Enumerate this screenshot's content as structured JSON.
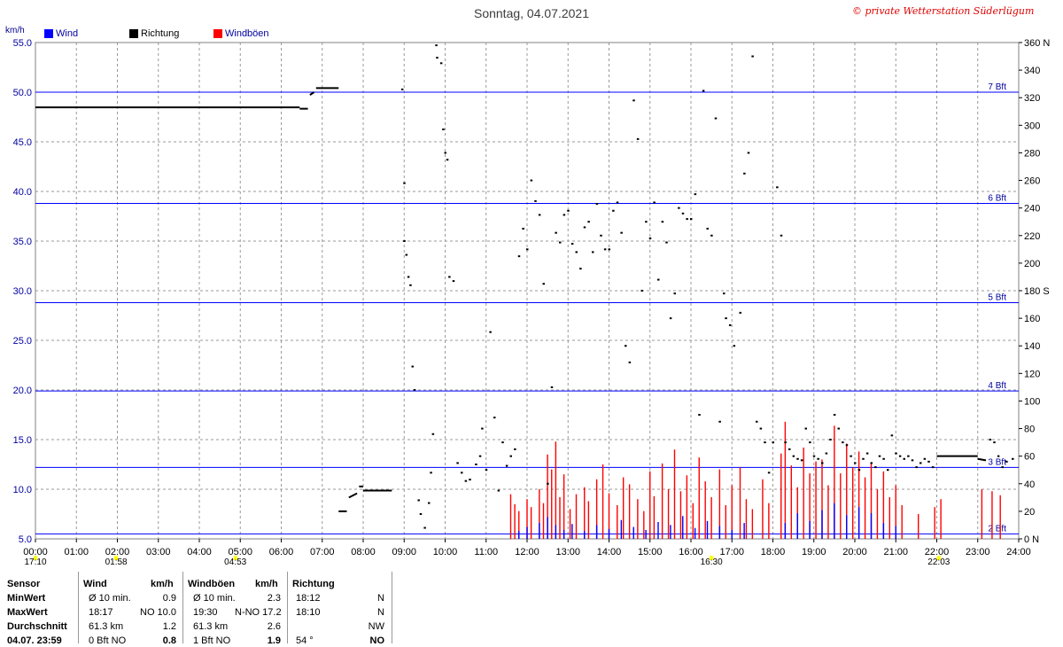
{
  "title": "Sonntag, 04.07.2021",
  "copyright": "© private Wetterstation Süderlügum",
  "left_unit": "km/h",
  "legend": [
    {
      "label": "Wind",
      "color": "#0000ff"
    },
    {
      "label": "Richtung",
      "color": "#000000"
    },
    {
      "label": "Windböen",
      "color": "#ff0000"
    }
  ],
  "colors": {
    "wind": "#0000ff",
    "gust": "#ff0000",
    "direction": "#000000",
    "bft_line": "#0000ff",
    "grid": "#999999",
    "marker": "#ffff00"
  },
  "chart_data": {
    "type": "bar",
    "x_ticks": [
      "00:00",
      "01:00",
      "02:00",
      "03:00",
      "04:00",
      "05:00",
      "06:00",
      "07:00",
      "08:00",
      "09:00",
      "10:00",
      "11:00",
      "12:00",
      "13:00",
      "14:00",
      "15:00",
      "16:00",
      "17:00",
      "18:00",
      "19:00",
      "20:00",
      "21:00",
      "22:00",
      "23:00",
      "24:00"
    ],
    "y_left_ticks": [
      "5.0",
      "10.0",
      "15.0",
      "20.0",
      "25.0",
      "30.0",
      "35.0",
      "40.0",
      "45.0",
      "50.0",
      "55.0"
    ],
    "y_left_range": [
      5,
      55
    ],
    "y_right_ticks": [
      "0 N",
      "20",
      "40",
      "60",
      "80",
      "100",
      "120",
      "140",
      "160",
      "180 S",
      "200",
      "220",
      "240",
      "260",
      "280",
      "300",
      "320",
      "340",
      "360 N"
    ],
    "y_right_range": [
      0,
      360
    ],
    "beaufort_lines": [
      {
        "label": "2 Bft",
        "kmh": 5.5
      },
      {
        "label": "3 Bft",
        "kmh": 12.2
      },
      {
        "label": "4 Bft",
        "kmh": 19.9
      },
      {
        "label": "5 Bft",
        "kmh": 28.8
      },
      {
        "label": "6 Bft",
        "kmh": 38.8
      },
      {
        "label": "7 Bft",
        "kmh": 50.0
      }
    ],
    "sun_markers": [
      {
        "label": "04:53",
        "time_h": 4.88
      },
      {
        "label": "22:03",
        "time_h": 22.05
      }
    ],
    "moon_markers": [
      {
        "label": "17:10",
        "time_h": 0.0
      },
      {
        "label": "01:58",
        "time_h": 1.97
      }
    ],
    "other_markers": [
      {
        "label": "16:30",
        "time_h": 16.5
      }
    ],
    "series": [
      {
        "name": "Windböen",
        "unit": "km/h",
        "points": [
          [
            11.6,
            9.5
          ],
          [
            11.7,
            8.5
          ],
          [
            11.8,
            7.8
          ],
          [
            12.0,
            9.0
          ],
          [
            12.1,
            8.2
          ],
          [
            12.3,
            10.0
          ],
          [
            12.4,
            8.6
          ],
          [
            12.5,
            13.5
          ],
          [
            12.6,
            12.0
          ],
          [
            12.7,
            14.8
          ],
          [
            12.8,
            9.2
          ],
          [
            12.9,
            11.5
          ],
          [
            13.05,
            8.0
          ],
          [
            13.2,
            9.5
          ],
          [
            13.4,
            10.2
          ],
          [
            13.5,
            8.8
          ],
          [
            13.7,
            11.0
          ],
          [
            13.85,
            12.5
          ],
          [
            14.0,
            9.6
          ],
          [
            14.2,
            8.4
          ],
          [
            14.35,
            11.2
          ],
          [
            14.5,
            10.5
          ],
          [
            14.7,
            9.0
          ],
          [
            14.85,
            7.8
          ],
          [
            15.0,
            11.8
          ],
          [
            15.1,
            9.3
          ],
          [
            15.3,
            12.6
          ],
          [
            15.45,
            10.0
          ],
          [
            15.6,
            14.0
          ],
          [
            15.75,
            9.8
          ],
          [
            15.9,
            11.4
          ],
          [
            16.05,
            8.6
          ],
          [
            16.2,
            13.2
          ],
          [
            16.35,
            10.8
          ],
          [
            16.5,
            9.2
          ],
          [
            16.7,
            12.0
          ],
          [
            16.85,
            8.4
          ],
          [
            17.0,
            10.4
          ],
          [
            17.2,
            12.2
          ],
          [
            17.35,
            9.0
          ],
          [
            17.5,
            8.0
          ],
          [
            17.75,
            11.0
          ],
          [
            17.9,
            8.6
          ],
          [
            18.2,
            13.6
          ],
          [
            18.3,
            16.8
          ],
          [
            18.45,
            12.4
          ],
          [
            18.6,
            10.2
          ],
          [
            18.75,
            14.2
          ],
          [
            18.9,
            11.6
          ],
          [
            19.05,
            12.8
          ],
          [
            19.2,
            13.0
          ],
          [
            19.35,
            10.4
          ],
          [
            19.5,
            16.4
          ],
          [
            19.65,
            11.6
          ],
          [
            19.8,
            14.6
          ],
          [
            19.95,
            12.2
          ],
          [
            20.1,
            13.8
          ],
          [
            20.25,
            11.2
          ],
          [
            20.4,
            12.6
          ],
          [
            20.55,
            10.0
          ],
          [
            20.7,
            11.8
          ],
          [
            20.85,
            9.2
          ],
          [
            21.0,
            10.4
          ],
          [
            21.15,
            8.4
          ],
          [
            21.55,
            7.5
          ],
          [
            21.95,
            8.2
          ],
          [
            22.1,
            9.0
          ],
          [
            23.1,
            10.0
          ],
          [
            23.35,
            9.8
          ],
          [
            23.55,
            9.4
          ]
        ]
      },
      {
        "name": "Wind",
        "unit": "km/h",
        "points": [
          [
            11.8,
            5.8
          ],
          [
            12.0,
            6.2
          ],
          [
            12.3,
            6.6
          ],
          [
            12.5,
            7.2
          ],
          [
            12.7,
            6.4
          ],
          [
            12.9,
            5.9
          ],
          [
            13.1,
            6.5
          ],
          [
            13.4,
            5.8
          ],
          [
            13.7,
            6.4
          ],
          [
            14.0,
            6.0
          ],
          [
            14.3,
            6.9
          ],
          [
            14.6,
            6.2
          ],
          [
            14.9,
            5.9
          ],
          [
            15.2,
            6.7
          ],
          [
            15.5,
            6.4
          ],
          [
            15.8,
            7.3
          ],
          [
            16.1,
            6.1
          ],
          [
            16.4,
            6.8
          ],
          [
            16.7,
            6.3
          ],
          [
            17.0,
            5.9
          ],
          [
            17.3,
            6.6
          ],
          [
            18.3,
            6.6
          ],
          [
            18.6,
            7.6
          ],
          [
            18.9,
            6.8
          ],
          [
            19.2,
            7.9
          ],
          [
            19.5,
            8.6
          ],
          [
            19.8,
            7.4
          ],
          [
            20.1,
            8.2
          ],
          [
            20.4,
            7.6
          ],
          [
            20.7,
            6.6
          ],
          [
            21.0,
            6.3
          ]
        ]
      },
      {
        "name": "Richtung",
        "unit": "deg",
        "segments": [
          [
            [
              0.0,
              313
            ],
            [
              6.45,
              313
            ]
          ],
          [
            [
              6.45,
              312
            ],
            [
              6.65,
              312
            ]
          ],
          [
            [
              6.7,
              322
            ],
            [
              6.8,
              324
            ]
          ],
          [
            [
              6.85,
              327
            ],
            [
              7.4,
              327
            ]
          ],
          [
            [
              7.4,
              20
            ],
            [
              7.6,
              20
            ]
          ],
          [
            [
              7.65,
              30
            ],
            [
              7.85,
              33
            ]
          ],
          [
            [
              7.9,
              38
            ],
            [
              8.0,
              38
            ]
          ],
          [
            [
              8.0,
              35
            ],
            [
              8.7,
              35
            ]
          ],
          [
            [
              22.0,
              60
            ],
            [
              23.0,
              60
            ]
          ],
          [
            [
              23.0,
              58
            ],
            [
              23.2,
              57
            ]
          ]
        ],
        "points": [
          [
            8.95,
            326
          ],
          [
            9.0,
            258
          ],
          [
            9.0,
            216
          ],
          [
            9.05,
            206
          ],
          [
            9.1,
            190
          ],
          [
            9.15,
            184
          ],
          [
            9.2,
            125
          ],
          [
            9.25,
            108
          ],
          [
            9.35,
            28
          ],
          [
            9.4,
            18
          ],
          [
            9.5,
            8
          ],
          [
            9.6,
            26
          ],
          [
            9.65,
            48
          ],
          [
            9.7,
            76
          ],
          [
            9.78,
            358
          ],
          [
            9.8,
            349
          ],
          [
            9.9,
            345
          ],
          [
            9.95,
            297
          ],
          [
            10.0,
            280
          ],
          [
            10.05,
            275
          ],
          [
            10.1,
            190
          ],
          [
            10.2,
            187
          ],
          [
            10.3,
            55
          ],
          [
            10.4,
            48
          ],
          [
            10.5,
            42
          ],
          [
            10.6,
            43
          ],
          [
            10.75,
            54
          ],
          [
            10.85,
            60
          ],
          [
            10.9,
            80
          ],
          [
            11.0,
            50
          ],
          [
            11.1,
            150
          ],
          [
            11.2,
            88
          ],
          [
            11.3,
            35
          ],
          [
            11.4,
            70
          ],
          [
            11.5,
            53
          ],
          [
            11.6,
            60
          ],
          [
            11.7,
            65
          ],
          [
            11.8,
            205
          ],
          [
            11.9,
            225
          ],
          [
            12.0,
            210
          ],
          [
            12.1,
            260
          ],
          [
            12.2,
            245
          ],
          [
            12.3,
            235
          ],
          [
            12.4,
            185
          ],
          [
            12.5,
            40
          ],
          [
            12.6,
            110
          ],
          [
            12.7,
            222
          ],
          [
            12.8,
            215
          ],
          [
            12.9,
            235
          ],
          [
            13.0,
            238
          ],
          [
            13.1,
            214
          ],
          [
            13.2,
            208
          ],
          [
            13.3,
            196
          ],
          [
            13.4,
            226
          ],
          [
            13.5,
            230
          ],
          [
            13.6,
            208
          ],
          [
            13.7,
            243
          ],
          [
            13.8,
            220
          ],
          [
            13.9,
            210
          ],
          [
            14.0,
            210
          ],
          [
            14.1,
            238
          ],
          [
            14.2,
            244
          ],
          [
            14.3,
            222
          ],
          [
            14.4,
            140
          ],
          [
            14.5,
            128
          ],
          [
            14.6,
            318
          ],
          [
            14.7,
            290
          ],
          [
            14.8,
            180
          ],
          [
            14.9,
            230
          ],
          [
            15.0,
            218
          ],
          [
            15.1,
            244
          ],
          [
            15.2,
            188
          ],
          [
            15.3,
            230
          ],
          [
            15.4,
            215
          ],
          [
            15.5,
            160
          ],
          [
            15.6,
            178
          ],
          [
            15.7,
            240
          ],
          [
            15.8,
            236
          ],
          [
            15.9,
            232
          ],
          [
            16.0,
            232
          ],
          [
            16.1,
            250
          ],
          [
            16.2,
            90
          ],
          [
            16.3,
            325
          ],
          [
            16.4,
            225
          ],
          [
            16.5,
            220
          ],
          [
            16.6,
            305
          ],
          [
            16.7,
            85
          ],
          [
            16.8,
            178
          ],
          [
            16.85,
            160
          ],
          [
            16.95,
            155
          ],
          [
            17.05,
            140
          ],
          [
            17.2,
            164
          ],
          [
            17.3,
            265
          ],
          [
            17.4,
            280
          ],
          [
            17.5,
            350
          ],
          [
            17.6,
            85
          ],
          [
            17.7,
            80
          ],
          [
            17.8,
            70
          ],
          [
            17.9,
            48
          ],
          [
            18.0,
            70
          ],
          [
            18.1,
            255
          ],
          [
            18.2,
            220
          ],
          [
            18.3,
            70
          ],
          [
            18.4,
            65
          ],
          [
            18.5,
            60
          ],
          [
            18.6,
            58
          ],
          [
            18.7,
            57
          ],
          [
            18.8,
            80
          ],
          [
            18.9,
            70
          ],
          [
            19.0,
            60
          ],
          [
            19.1,
            58
          ],
          [
            19.2,
            55
          ],
          [
            19.3,
            62
          ],
          [
            19.4,
            72
          ],
          [
            19.5,
            90
          ],
          [
            19.6,
            80
          ],
          [
            19.7,
            70
          ],
          [
            19.8,
            68
          ],
          [
            19.9,
            60
          ],
          [
            20.0,
            55
          ],
          [
            20.1,
            50
          ],
          [
            20.2,
            58
          ],
          [
            20.3,
            62
          ],
          [
            20.4,
            55
          ],
          [
            20.5,
            52
          ],
          [
            20.6,
            60
          ],
          [
            20.7,
            58
          ],
          [
            20.8,
            50
          ],
          [
            20.9,
            75
          ],
          [
            21.0,
            62
          ],
          [
            21.1,
            60
          ],
          [
            21.2,
            58
          ],
          [
            21.3,
            60
          ],
          [
            21.4,
            57
          ],
          [
            21.5,
            52
          ],
          [
            21.6,
            55
          ],
          [
            21.7,
            58
          ],
          [
            21.8,
            56
          ],
          [
            21.9,
            52
          ],
          [
            23.3,
            72
          ],
          [
            23.4,
            70
          ],
          [
            23.5,
            60
          ],
          [
            23.6,
            52
          ],
          [
            23.7,
            56
          ],
          [
            23.85,
            58
          ]
        ]
      }
    ]
  },
  "stats": {
    "headers": {
      "sensor": "Sensor",
      "wind": "Wind",
      "kmh1": "km/h",
      "gust": "Windböen",
      "kmh2": "km/h",
      "dir": "Richtung"
    },
    "rows": [
      {
        "label": "MinWert",
        "wind_c1": "Ø 10 min.",
        "wind_c2": "",
        "wind_val": "0.9",
        "gust_c1": "Ø 10 min.",
        "gust_c2": "",
        "gust_val": "2.3",
        "dir_time": "18:12",
        "dir_val": "N"
      },
      {
        "label": "MaxWert",
        "wind_c1": "18:17",
        "wind_c2": "NO 10.0",
        "wind_val": "",
        "gust_c1": "19:30",
        "gust_c2": "N-NO 17.2",
        "gust_val": "",
        "dir_time": "18:10",
        "dir_val": "N"
      },
      {
        "label": "Durchschnitt",
        "wind_c1": "61.3 km",
        "wind_c2": "",
        "wind_val": "1.2",
        "gust_c1": "61.3 km",
        "gust_c2": "",
        "gust_val": "2.6",
        "dir_time": "",
        "dir_val": "NW"
      },
      {
        "label": "04.07. 23:59",
        "wind_c1": "0 Bft NO",
        "wind_c2": "",
        "wind_val": "0.8",
        "gust_c1": "1 Bft NO",
        "gust_c2": "",
        "gust_val": "1.9",
        "dir_time": "54 °",
        "dir_val": "NO"
      }
    ]
  }
}
